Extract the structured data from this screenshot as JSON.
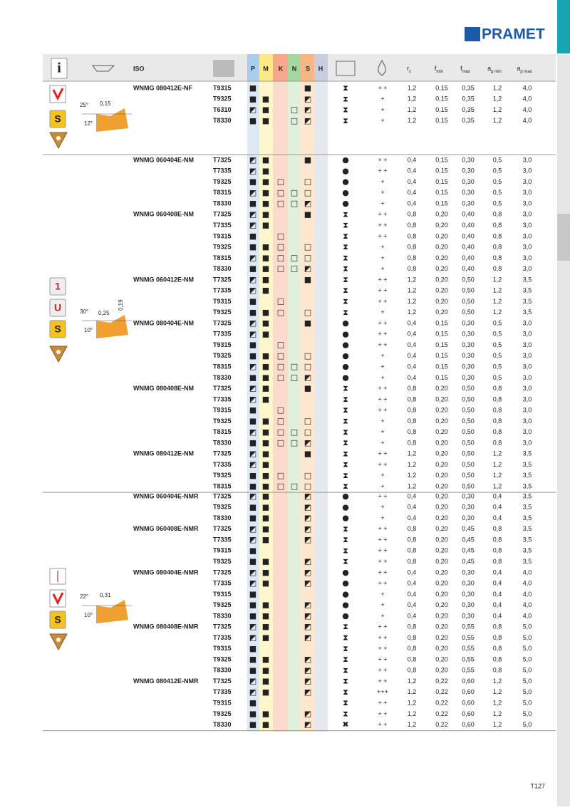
{
  "logo": "PRAMET",
  "page_number": "T127",
  "header": {
    "iso": "ISO",
    "materials": [
      "P",
      "M",
      "K",
      "N",
      "S",
      "H"
    ],
    "columns": [
      {
        "main": "r",
        "sub": "ε"
      },
      {
        "main": "f",
        "sub": "min"
      },
      {
        "main": "f",
        "sub": "max"
      },
      {
        "main": "a",
        "sub": "p min"
      },
      {
        "main": "a",
        "sub": "p max"
      }
    ]
  },
  "sections": [
    {
      "badges": [
        "S"
      ],
      "diagram": [
        "25°",
        "0,15",
        "12°"
      ],
      "rows": [
        [
          "WNMG 080412E-NF",
          "T9315",
          "■",
          null,
          null,
          null,
          "■",
          null,
          "⧗",
          "+ +",
          "1,2",
          "0,15",
          "0,35",
          "1,2",
          "4,0"
        ],
        [
          null,
          "T9325",
          "■",
          "■",
          null,
          null,
          "◩",
          null,
          "⧗",
          "+",
          "1,2",
          "0,15",
          "0,35",
          "1,2",
          "4,0"
        ],
        [
          null,
          "T6310",
          "◩",
          "■",
          null,
          "□",
          "◩",
          null,
          "⧗",
          "+",
          "1,2",
          "0,15",
          "0,35",
          "1,2",
          "4,0"
        ],
        [
          null,
          "T8330",
          "■",
          "■",
          null,
          "□",
          "◩",
          null,
          "⧗",
          "+",
          "1,2",
          "0,15",
          "0,35",
          "1,2",
          "4,0"
        ]
      ]
    },
    {
      "badges": [
        "1",
        "U",
        "S"
      ],
      "diagram": [
        "30°",
        "0,25",
        "0,19",
        "10°"
      ],
      "rows": [
        [
          "WNMG 060404E-NM",
          "T7325",
          "◩",
          "■",
          null,
          null,
          "■",
          null,
          "●",
          "+ +",
          "0,4",
          "0,15",
          "0,30",
          "0,5",
          "3,0"
        ],
        [
          null,
          "T7335",
          "◩",
          "■",
          null,
          null,
          null,
          null,
          "●",
          "+ +",
          "0,4",
          "0,15",
          "0,30",
          "0,5",
          "3,0"
        ],
        [
          null,
          "T9325",
          "■",
          "■",
          "□",
          null,
          "□",
          null,
          "●",
          "+",
          "0,4",
          "0,15",
          "0,30",
          "0,5",
          "3,0"
        ],
        [
          null,
          "T8315",
          "◩",
          "■",
          "□",
          "□",
          "□",
          null,
          "●",
          "+",
          "0,4",
          "0,15",
          "0,30",
          "0,5",
          "3,0"
        ],
        [
          null,
          "T8330",
          "■",
          "■",
          "□",
          "□",
          "◩",
          null,
          "●",
          "+",
          "0,4",
          "0,15",
          "0,30",
          "0,5",
          "3,0"
        ],
        [
          "WNMG 060408E-NM",
          "T7325",
          "◩",
          "■",
          null,
          null,
          "■",
          null,
          "⧗",
          "+ +",
          "0,8",
          "0,20",
          "0,40",
          "0,8",
          "3,0"
        ],
        [
          null,
          "T7335",
          "◩",
          "■",
          null,
          null,
          null,
          null,
          "⧗",
          "+ +",
          "0,8",
          "0,20",
          "0,40",
          "0,8",
          "3,0"
        ],
        [
          null,
          "T9315",
          "■",
          null,
          "□",
          null,
          null,
          null,
          "⧗",
          "+ +",
          "0,8",
          "0,20",
          "0,40",
          "0,8",
          "3,0"
        ],
        [
          null,
          "T9325",
          "■",
          "■",
          "□",
          null,
          "□",
          null,
          "⧗",
          "+",
          "0,8",
          "0,20",
          "0,40",
          "0,8",
          "3,0"
        ],
        [
          null,
          "T8315",
          "◩",
          "■",
          "□",
          "□",
          "□",
          null,
          "⧗",
          "+",
          "0,8",
          "0,20",
          "0,40",
          "0,8",
          "3,0"
        ],
        [
          null,
          "T8330",
          "■",
          "■",
          "□",
          "□",
          "◩",
          null,
          "⧗",
          "+",
          "0,8",
          "0,20",
          "0,40",
          "0,8",
          "3,0"
        ],
        [
          "WNMG 060412E-NM",
          "T7325",
          "◩",
          "■",
          null,
          null,
          "■",
          null,
          "⧗",
          "+ +",
          "1,2",
          "0,20",
          "0,50",
          "1,2",
          "3,5"
        ],
        [
          null,
          "T7335",
          "◩",
          "■",
          null,
          null,
          null,
          null,
          "⧗",
          "+ +",
          "1,2",
          "0,20",
          "0,50",
          "1,2",
          "3,5"
        ],
        [
          null,
          "T9315",
          "■",
          null,
          "□",
          null,
          null,
          null,
          "⧗",
          "+ +",
          "1,2",
          "0,20",
          "0,50",
          "1,2",
          "3,5"
        ],
        [
          null,
          "T9325",
          "■",
          "■",
          "□",
          null,
          "□",
          null,
          "⧗",
          "+",
          "1,2",
          "0,20",
          "0,50",
          "1,2",
          "3,5"
        ],
        [
          "WNMG 080404E-NM",
          "T7325",
          "◩",
          "■",
          null,
          null,
          "■",
          null,
          "●",
          "+ +",
          "0,4",
          "0,15",
          "0,30",
          "0,5",
          "3,0"
        ],
        [
          null,
          "T7335",
          "◩",
          "■",
          null,
          null,
          null,
          null,
          "●",
          "+ +",
          "0,4",
          "0,15",
          "0,30",
          "0,5",
          "3,0"
        ],
        [
          null,
          "T9315",
          "■",
          null,
          "□",
          null,
          null,
          null,
          "●",
          "+ +",
          "0,4",
          "0,15",
          "0,30",
          "0,5",
          "3,0"
        ],
        [
          null,
          "T9325",
          "■",
          "■",
          "□",
          null,
          "□",
          null,
          "●",
          "+",
          "0,4",
          "0,15",
          "0,30",
          "0,5",
          "3,0"
        ],
        [
          null,
          "T8315",
          "◩",
          "■",
          "□",
          "□",
          "□",
          null,
          "●",
          "+",
          "0,4",
          "0,15",
          "0,30",
          "0,5",
          "3,0"
        ],
        [
          null,
          "T8330",
          "■",
          "■",
          "□",
          "□",
          "◩",
          null,
          "●",
          "+",
          "0,4",
          "0,15",
          "0,30",
          "0,5",
          "3,0"
        ],
        [
          "WNMG 080408E-NM",
          "T7325",
          "◩",
          "■",
          null,
          null,
          "■",
          null,
          "⧗",
          "+ +",
          "0,8",
          "0,20",
          "0,50",
          "0,8",
          "3,0"
        ],
        [
          null,
          "T7335",
          "◩",
          "■",
          null,
          null,
          null,
          null,
          "⧗",
          "+ +",
          "0,8",
          "0,20",
          "0,50",
          "0,8",
          "3,0"
        ],
        [
          null,
          "T9315",
          "■",
          null,
          "□",
          null,
          null,
          null,
          "⧗",
          "+ +",
          "0,8",
          "0,20",
          "0,50",
          "0,8",
          "3,0"
        ],
        [
          null,
          "T9325",
          "■",
          "■",
          "□",
          null,
          "□",
          null,
          "⧗",
          "+",
          "0,8",
          "0,20",
          "0,50",
          "0,8",
          "3,0"
        ],
        [
          null,
          "T8315",
          "◩",
          "■",
          "□",
          "□",
          "□",
          null,
          "⧗",
          "+",
          "0,8",
          "0,20",
          "0,50",
          "0,8",
          "3,0"
        ],
        [
          null,
          "T8330",
          "■",
          "■",
          "□",
          "□",
          "◩",
          null,
          "⧗",
          "+",
          "0,8",
          "0,20",
          "0,50",
          "0,8",
          "3,0"
        ],
        [
          "WNMG 080412E-NM",
          "T7325",
          "◩",
          "■",
          null,
          null,
          "■",
          null,
          "⧗",
          "+ +",
          "1,2",
          "0,20",
          "0,50",
          "1,2",
          "3,5"
        ],
        [
          null,
          "T7335",
          "◩",
          "■",
          null,
          null,
          null,
          null,
          "⧗",
          "+ +",
          "1,2",
          "0,20",
          "0,50",
          "1,2",
          "3,5"
        ],
        [
          null,
          "T9325",
          "■",
          "■",
          "□",
          null,
          "□",
          null,
          "⧗",
          "+",
          "1,2",
          "0,20",
          "0,50",
          "1,2",
          "3,5"
        ],
        [
          null,
          "T8315",
          "■",
          "■",
          "□",
          "□",
          "□",
          null,
          "⧗",
          "+",
          "1,2",
          "0,20",
          "0,50",
          "1,2",
          "3,5"
        ]
      ]
    },
    {
      "badges": [
        "S"
      ],
      "diagram": [
        "22°",
        "0,31",
        "10°"
      ],
      "rows": [
        [
          "WNMG 060404E-NMR",
          "T7325",
          "◩",
          "■",
          null,
          null,
          "◩",
          null,
          "●",
          "+ +",
          "0,4",
          "0,20",
          "0,30",
          "0,4",
          "3,5"
        ],
        [
          null,
          "T9325",
          "■",
          "■",
          null,
          null,
          "◩",
          null,
          "●",
          "+",
          "0,4",
          "0,20",
          "0,30",
          "0,4",
          "3,5"
        ],
        [
          null,
          "T8330",
          "■",
          "■",
          null,
          null,
          "◩",
          null,
          "●",
          "+",
          "0,4",
          "0,20",
          "0,30",
          "0,4",
          "3,5"
        ],
        [
          "WNMG 060408E-NMR",
          "T7325",
          "◩",
          "■",
          null,
          null,
          "◩",
          null,
          "⧗",
          "+ +",
          "0,8",
          "0,20",
          "0,45",
          "0,8",
          "3,5"
        ],
        [
          null,
          "T7335",
          "◩",
          "■",
          null,
          null,
          "◩",
          null,
          "⧗",
          "+ +",
          "0,8",
          "0,20",
          "0,45",
          "0,8",
          "3,5"
        ],
        [
          null,
          "T9315",
          "■",
          null,
          null,
          null,
          null,
          null,
          "⧗",
          "+ +",
          "0,8",
          "0,20",
          "0,45",
          "0,8",
          "3,5"
        ],
        [
          null,
          "T9325",
          "■",
          "■",
          null,
          null,
          "◩",
          null,
          "⧗",
          "+ +",
          "0,8",
          "0,20",
          "0,45",
          "0,8",
          "3,5"
        ],
        [
          "WNMG 080404E-NMR",
          "T7325",
          "◩",
          "■",
          null,
          null,
          "◩",
          null,
          "●",
          "+ +",
          "0,4",
          "0,20",
          "0,30",
          "0,4",
          "4,0"
        ],
        [
          null,
          "T7335",
          "◩",
          "■",
          null,
          null,
          "◩",
          null,
          "●",
          "+ +",
          "0,4",
          "0,20",
          "0,30",
          "0,4",
          "4,0"
        ],
        [
          null,
          "T9315",
          "■",
          null,
          null,
          null,
          null,
          null,
          "●",
          "+",
          "0,4",
          "0,20",
          "0,30",
          "0,4",
          "4,0"
        ],
        [
          null,
          "T9325",
          "■",
          "■",
          null,
          null,
          "◩",
          null,
          "●",
          "+",
          "0,4",
          "0,20",
          "0,30",
          "0,4",
          "4,0"
        ],
        [
          null,
          "T8330",
          "■",
          "■",
          null,
          null,
          "◩",
          null,
          "●",
          "+",
          "0,4",
          "0,20",
          "0,30",
          "0,4",
          "4,0"
        ],
        [
          "WNMG 080408E-NMR",
          "T7325",
          "◩",
          "■",
          null,
          null,
          "◩",
          null,
          "⧗",
          "+ +",
          "0,8",
          "0,20",
          "0,55",
          "0,8",
          "5,0"
        ],
        [
          null,
          "T7335",
          "◩",
          "■",
          null,
          null,
          "◩",
          null,
          "⧗",
          "+ +",
          "0,8",
          "0,20",
          "0,55",
          "0,8",
          "5,0"
        ],
        [
          null,
          "T9315",
          "■",
          null,
          null,
          null,
          null,
          null,
          "⧗",
          "+ +",
          "0,8",
          "0,20",
          "0,55",
          "0,8",
          "5,0"
        ],
        [
          null,
          "T9325",
          "■",
          "■",
          null,
          null,
          "◩",
          null,
          "⧗",
          "+ +",
          "0,8",
          "0,20",
          "0,55",
          "0,8",
          "5,0"
        ],
        [
          null,
          "T8330",
          "■",
          "■",
          null,
          null,
          "◩",
          null,
          "⧗",
          "+ +",
          "0,8",
          "0,20",
          "0,55",
          "0,8",
          "5,0"
        ],
        [
          "WNMG 080412E-NMR",
          "T7325",
          "◩",
          "■",
          null,
          null,
          "◩",
          null,
          "⧗",
          "+ +",
          "1,2",
          "0,22",
          "0,60",
          "1,2",
          "5,0"
        ],
        [
          null,
          "T7335",
          "◩",
          "■",
          null,
          null,
          "◩",
          null,
          "⧗",
          "+++",
          "1,2",
          "0,22",
          "0,60",
          "1,2",
          "5,0"
        ],
        [
          null,
          "T9315",
          "■",
          null,
          null,
          null,
          null,
          null,
          "⧗",
          "+ +",
          "1,2",
          "0,22",
          "0,60",
          "1,2",
          "5,0"
        ],
        [
          null,
          "T9325",
          "■",
          "■",
          null,
          null,
          "◩",
          null,
          "⧗",
          "+ +",
          "1,2",
          "0,22",
          "0,60",
          "1,2",
          "5,0"
        ],
        [
          null,
          "T8330",
          "■",
          "■",
          null,
          null,
          "◩",
          null,
          "✖",
          "+ +",
          "1,2",
          "0,22",
          "0,60",
          "1,2",
          "5,0"
        ]
      ]
    }
  ]
}
